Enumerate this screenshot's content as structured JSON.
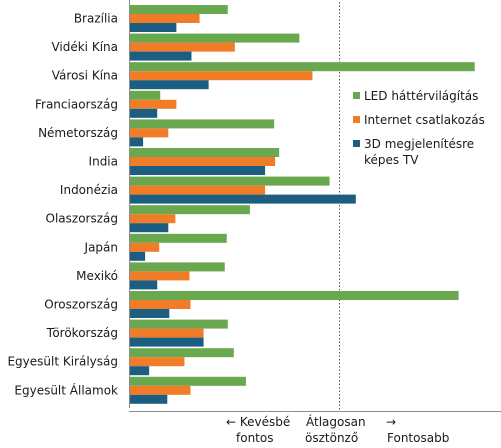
{
  "chart_data": {
    "type": "bar",
    "orientation": "horizontal",
    "categories": [
      "Brazília",
      "Vidéki Kína",
      "Városi Kína",
      "Franciaország",
      "Németország",
      "India",
      "Indonézia",
      "Olaszország",
      "Japán",
      "Mexikó",
      "Oroszország",
      "Törökország",
      "Egyesült Királyság",
      "Egyesült Államok"
    ],
    "series": [
      {
        "name": "LED háttérvilágítás",
        "color": "#6aa84f",
        "values": [
          0.97,
          1.68,
          3.42,
          0.3,
          1.43,
          1.48,
          1.98,
          1.19,
          0.96,
          0.94,
          3.26,
          0.97,
          1.03,
          1.15
        ]
      },
      {
        "name": "Internet csatlakozás",
        "color": "#f07c27",
        "values": [
          0.69,
          1.04,
          1.81,
          0.46,
          0.38,
          1.44,
          1.34,
          0.45,
          0.29,
          0.59,
          0.6,
          0.73,
          0.54,
          0.6
        ]
      },
      {
        "name": "3D megjelenítésre képes TV",
        "color": "#1b5e82",
        "values": [
          0.46,
          0.61,
          0.78,
          0.27,
          0.13,
          1.34,
          2.24,
          0.38,
          0.15,
          0.27,
          0.39,
          0.73,
          0.19,
          0.37
        ]
      }
    ],
    "reference_line": {
      "value": 2.08,
      "style": "dotted"
    },
    "xlim": [
      0,
      3.6
    ],
    "x_axis_labels": {
      "left": [
        "← Kevésbé",
        "fontos"
      ],
      "center": [
        "Átlagosan",
        "ösztönző"
      ],
      "right": [
        "→",
        "Fontosabb"
      ]
    },
    "legend_position": "right",
    "grid": false
  }
}
